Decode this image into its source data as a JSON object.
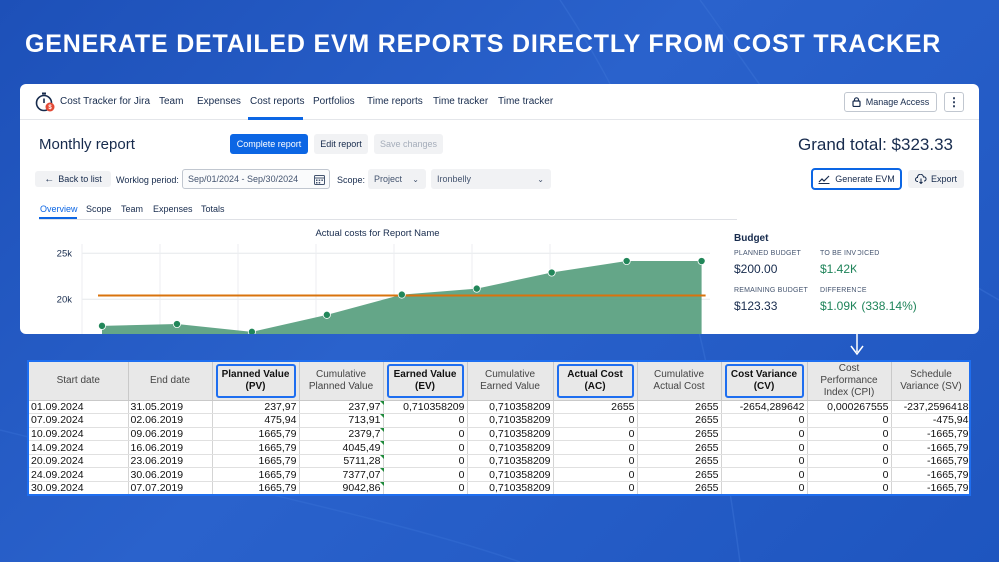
{
  "headline": "GENERATE DETAILED EVM REPORTS DIRECTLY FROM COST TRACKER",
  "app": {
    "name": "Cost Tracker for Jira",
    "nav": [
      "Team",
      "Expenses",
      "Cost reports",
      "Portfolios",
      "Time reports",
      "Time tracker",
      "Time tracker"
    ],
    "active_nav": "Cost reports",
    "manage_access": "Manage Access",
    "more": "⋮"
  },
  "report": {
    "title": "Monthly report",
    "complete_btn": "Complete report",
    "edit_btn": "Edit report",
    "save_btn": "Save changes",
    "grand_total": "Grand total: $323.33",
    "back_btn": "Back to list",
    "worklog_label": "Worklog period:",
    "worklog_value": "Sep/01/2024 - Sep/30/2024",
    "scope_label": "Scope:",
    "scope_value": "Project",
    "project_value": "Ironbelly",
    "generate_evm": "Generate EVM",
    "export": "Export",
    "tabs": [
      "Overview",
      "Scope",
      "Team",
      "Expenses",
      "Totals"
    ]
  },
  "budget": {
    "title": "Budget",
    "planned_label": "PLANNED BUDGET",
    "planned_value": "$200.00",
    "invoiced_label": "TO BE INVOICED",
    "invoiced_value": "$1.42K",
    "remaining_label": "REMAINING BUDGET",
    "remaining_value": "$123.33",
    "difference_label": "DIFFERENCE",
    "difference_value": "$1.09K (338.14%)"
  },
  "chart_data": {
    "type": "area",
    "title": "Actual costs for Report Name",
    "xlabel": "",
    "ylabel": "",
    "y_ticks": [
      "25k",
      "20k"
    ],
    "ylim": [
      16000,
      26000
    ],
    "points": [
      17100,
      17300,
      16450,
      18300,
      20500,
      21150,
      22900,
      24150,
      24150
    ],
    "reference_line": 20400,
    "colors": {
      "area": "#579e7e",
      "point": "#22875a",
      "line": "#d9730d"
    }
  },
  "evm_table": {
    "headers": [
      {
        "label": "Start date",
        "highlight": false
      },
      {
        "label": "End date",
        "highlight": false
      },
      {
        "label": "Planned Value (PV)",
        "highlight": true
      },
      {
        "label": "Cumulative Planned Value",
        "highlight": false
      },
      {
        "label": "Earned Value (EV)",
        "highlight": true
      },
      {
        "label": "Cumulative Earned Value",
        "highlight": false
      },
      {
        "label": "Actual Cost (AC)",
        "highlight": true
      },
      {
        "label": "Cumulative Actual Cost",
        "highlight": false
      },
      {
        "label": "Cost Variance (CV)",
        "highlight": true
      },
      {
        "label": "Cost Performance Index (CPI)",
        "highlight": false
      },
      {
        "label": "Schedule Variance (SV)",
        "highlight": false
      }
    ],
    "rows": [
      [
        "01.09.2024",
        "31.05.2019",
        "237,97",
        "237,97",
        "0,710358209",
        "0,710358209",
        "2655",
        "2655",
        "-2654,289642",
        "0,000267555",
        "-237,2596418"
      ],
      [
        "07.09.2024",
        "02.06.2019",
        "475,94",
        "713,91",
        "0",
        "0,710358209",
        "0",
        "2655",
        "0",
        "0",
        "-475,94"
      ],
      [
        "10.09.2024",
        "09.06.2019",
        "1665,79",
        "2379,7",
        "0",
        "0,710358209",
        "0",
        "2655",
        "0",
        "0",
        "-1665,79"
      ],
      [
        "14.09.2024",
        "16.06.2019",
        "1665,79",
        "4045,49",
        "0",
        "0,710358209",
        "0",
        "2655",
        "0",
        "0",
        "-1665,79"
      ],
      [
        "20.09.2024",
        "23.06.2019",
        "1665,79",
        "5711,28",
        "0",
        "0,710358209",
        "0",
        "2655",
        "0",
        "0",
        "-1665,79"
      ],
      [
        "24.09.2024",
        "30.06.2019",
        "1665,79",
        "7377,07",
        "0",
        "0,710358209",
        "0",
        "2655",
        "0",
        "0",
        "-1665,79"
      ],
      [
        "30.09.2024",
        "07.07.2019",
        "1665,79",
        "9042,86",
        "0",
        "0,710358209",
        "0",
        "2655",
        "0",
        "0",
        "-1665,79"
      ]
    ]
  }
}
